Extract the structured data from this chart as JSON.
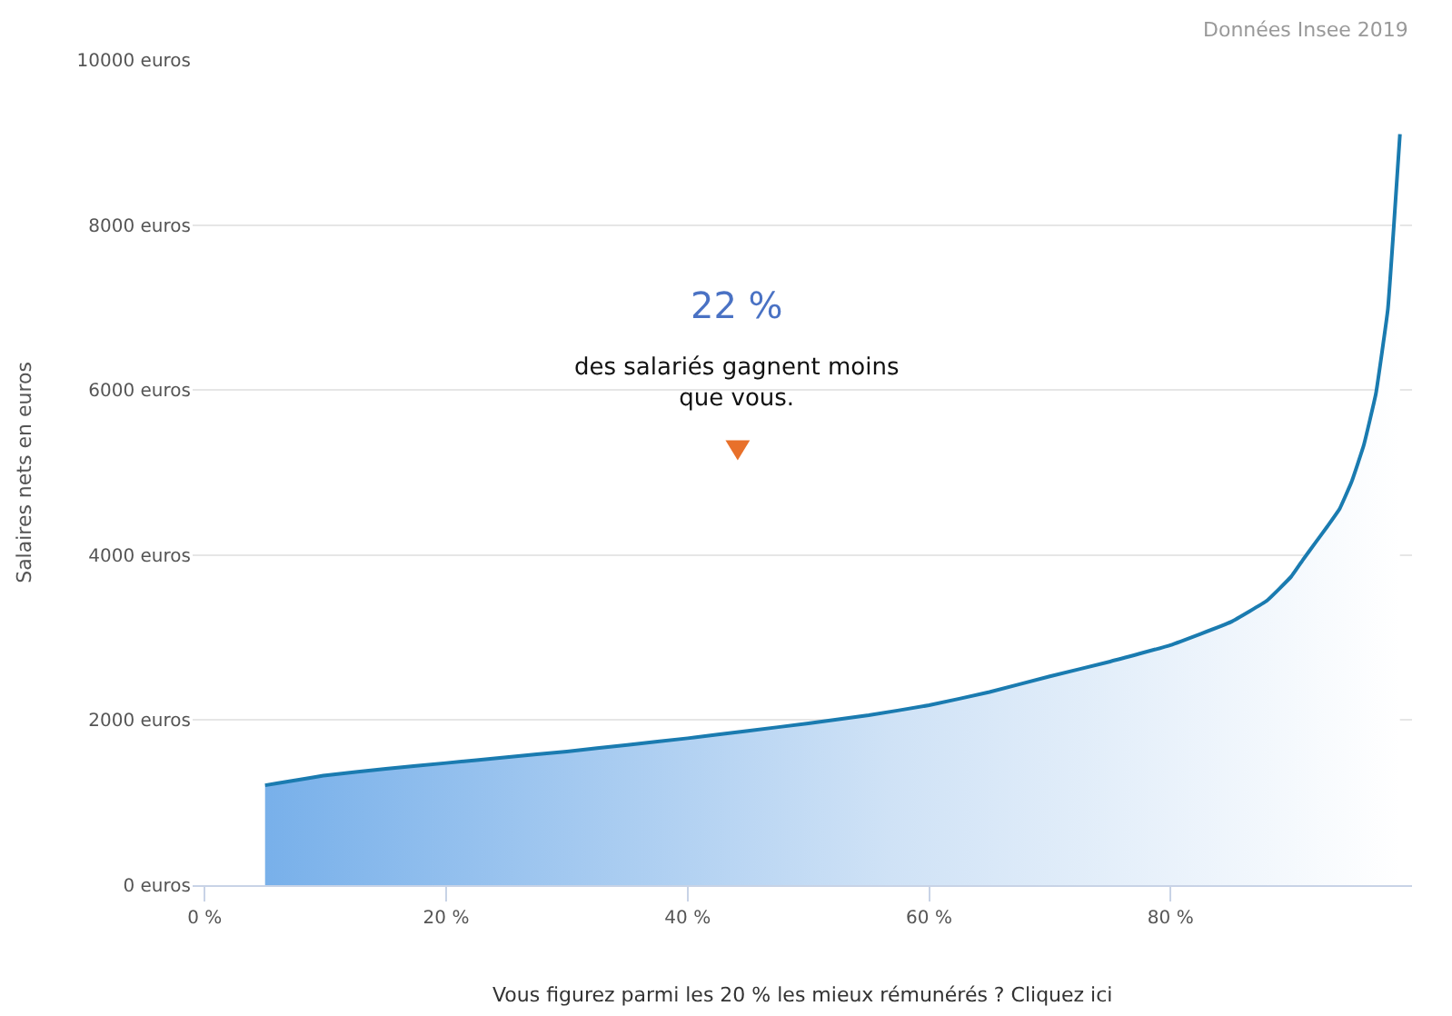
{
  "chart_data": {
    "type": "area",
    "ylabel": "Salaires nets en euros",
    "annotations": [
      "Données Insee 2019",
      "22 %",
      "des salariés gagnent moins\nque vous.",
      "Vous figurez parmi les 20 % les mieux rémunérés ? Cliquez ici"
    ],
    "x": [
      5,
      10,
      15,
      20,
      25,
      30,
      35,
      40,
      45,
      50,
      55,
      60,
      65,
      70,
      75,
      80,
      85,
      88,
      90,
      91,
      92,
      93,
      94,
      95,
      96,
      97,
      98,
      98.5,
      99
    ],
    "series": [
      {
        "color": "#1a7bb0",
        "values": [
          1210,
          1330,
          1410,
          1480,
          1550,
          1620,
          1700,
          1780,
          1870,
          1960,
          2060,
          2180,
          2340,
          2530,
          2710,
          2910,
          3190,
          3450,
          3740,
          3950,
          4150,
          4350,
          4560,
          4890,
          5330,
          5950,
          6980,
          8000,
          9100
        ]
      }
    ],
    "xlim": [
      -1,
      100
    ],
    "xticks": [
      {
        "value": 0,
        "label": "0 %"
      },
      {
        "value": 20,
        "label": "20 %"
      },
      {
        "value": 40,
        "label": "40 %"
      },
      {
        "value": 60,
        "label": "60 %"
      },
      {
        "value": 80,
        "label": "80 %"
      }
    ],
    "ylim": [
      0,
      10000
    ],
    "yticks": [
      {
        "value": 0,
        "label": "0 euros"
      },
      {
        "value": 2000,
        "label": "2000 euros"
      },
      {
        "value": 4000,
        "label": "4000 euros"
      },
      {
        "value": 6000,
        "label": "6000 euros"
      },
      {
        "value": 8000,
        "label": "8000 euros"
      },
      {
        "value": 10000,
        "label": "10000 euros"
      }
    ],
    "grid": "y",
    "marker": "none",
    "line_style": "solid"
  }
}
